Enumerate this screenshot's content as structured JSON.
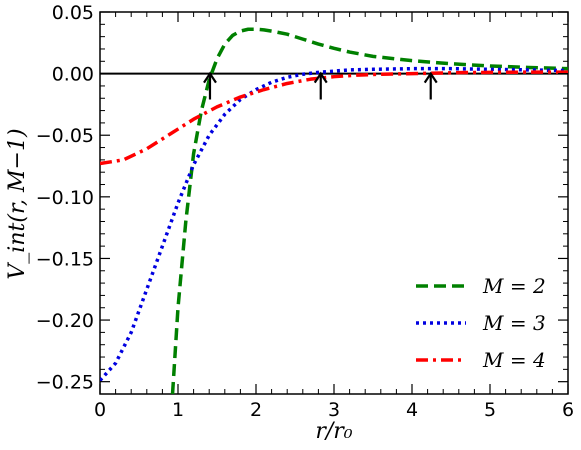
{
  "chart_data": {
    "type": "line",
    "xlabel": "r/r₀",
    "ylabel": "V_int(r, M−1)",
    "xlim": [
      0,
      6
    ],
    "ylim": [
      -0.26,
      0.05
    ],
    "x_ticks": [
      0,
      1,
      2,
      3,
      4,
      5,
      6
    ],
    "x_tick_labels": [
      "0",
      "1",
      "2",
      "3",
      "4",
      "5",
      "6"
    ],
    "y_ticks": [
      0.05,
      0.0,
      -0.05,
      -0.1,
      -0.15,
      -0.2,
      -0.25
    ],
    "y_tick_labels": [
      "0.05",
      "0.00",
      "−0.05",
      "−0.10",
      "−0.15",
      "−0.20",
      "−0.25"
    ],
    "grid": false,
    "legend_position": "bottom-right",
    "zero_line": true,
    "series": [
      {
        "name": "M = 2",
        "color": "#008000",
        "style": "dashed",
        "x": [
          0.93,
          1.0,
          1.1,
          1.2,
          1.3,
          1.4,
          1.5,
          1.6,
          1.7,
          1.8,
          1.9,
          2.0,
          2.1,
          2.2,
          2.4,
          2.6,
          2.8,
          3.0,
          3.2,
          3.5,
          4.0,
          4.5,
          5.0,
          5.5,
          6.0
        ],
        "y": [
          -0.26,
          -0.19,
          -0.12,
          -0.065,
          -0.03,
          -0.005,
          0.012,
          0.024,
          0.031,
          0.0345,
          0.036,
          0.036,
          0.0355,
          0.0345,
          0.032,
          0.028,
          0.024,
          0.0205,
          0.0175,
          0.014,
          0.0105,
          0.008,
          0.0062,
          0.005,
          0.004
        ]
      },
      {
        "name": "M = 3",
        "color": "#0000e0",
        "style": "dotted",
        "x": [
          0,
          0.2,
          0.4,
          0.6,
          0.8,
          1.0,
          1.2,
          1.4,
          1.6,
          1.8,
          2.0,
          2.2,
          2.4,
          2.6,
          2.8,
          3.0,
          3.2,
          3.5,
          4.0,
          4.5,
          5.0,
          5.5,
          6.0
        ],
        "y": [
          -0.249,
          -0.235,
          -0.21,
          -0.175,
          -0.14,
          -0.105,
          -0.074,
          -0.05,
          -0.033,
          -0.021,
          -0.013,
          -0.007,
          -0.003,
          -0.0005,
          0.001,
          0.002,
          0.003,
          0.0035,
          0.004,
          0.004,
          0.0035,
          0.003,
          0.0025
        ]
      },
      {
        "name": "M = 4",
        "color": "#ff0000",
        "style": "dashdot",
        "x": [
          0,
          0.3,
          0.6,
          0.9,
          1.2,
          1.5,
          1.8,
          2.1,
          2.4,
          2.7,
          3.0,
          3.3,
          3.6,
          4.0,
          4.3,
          4.6,
          5.0,
          5.5,
          6.0
        ],
        "y": [
          -0.073,
          -0.07,
          -0.061,
          -0.049,
          -0.037,
          -0.027,
          -0.019,
          -0.013,
          -0.008,
          -0.0045,
          -0.0025,
          -0.0012,
          -0.0005,
          0.0,
          0.0004,
          0.0008,
          0.001,
          0.0012,
          0.0012
        ]
      }
    ],
    "annotations": [
      {
        "type": "arrow",
        "x": 1.41,
        "y_from": -0.021,
        "y_to": 0.0
      },
      {
        "type": "arrow",
        "x": 2.83,
        "y_from": -0.021,
        "y_to": 0.0
      },
      {
        "type": "arrow",
        "x": 4.24,
        "y_from": -0.021,
        "y_to": 0.0
      }
    ]
  }
}
